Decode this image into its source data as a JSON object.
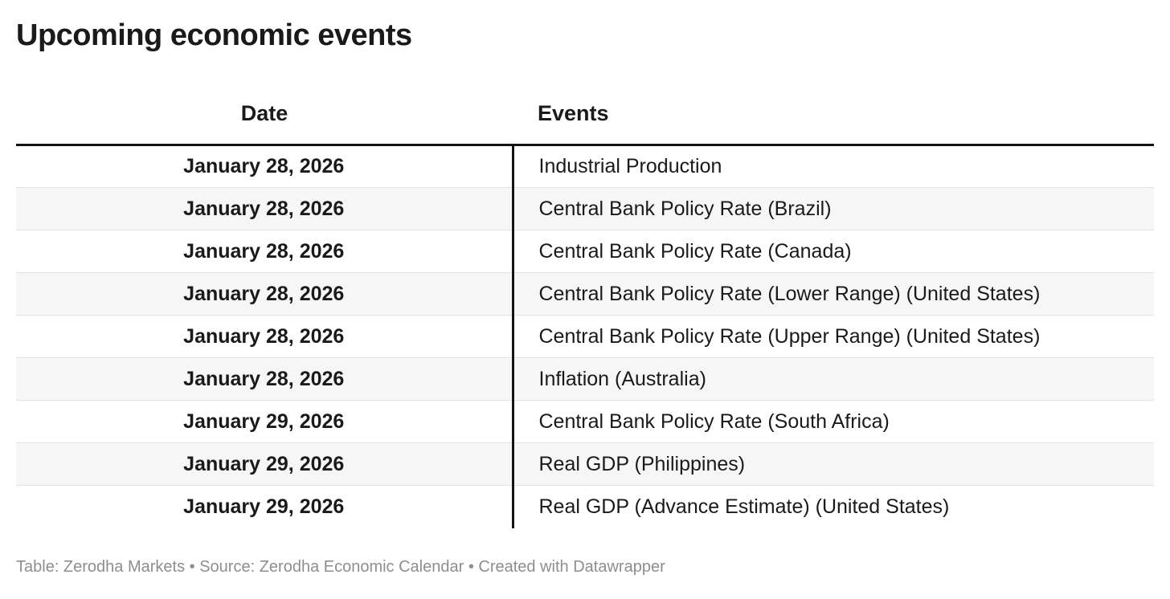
{
  "title": "Upcoming economic events",
  "chart_data": {
    "type": "table",
    "title": "Upcoming economic events",
    "columns": [
      "Date",
      "Events"
    ],
    "rows": [
      {
        "date": "January 28, 2026",
        "event": "Industrial Production"
      },
      {
        "date": "January 28, 2026",
        "event": "Central Bank Policy Rate (Brazil)"
      },
      {
        "date": "January 28, 2026",
        "event": "Central Bank Policy Rate (Canada)"
      },
      {
        "date": "January 28, 2026",
        "event": "Central Bank Policy Rate (Lower Range) (United States)"
      },
      {
        "date": "January 28, 2026",
        "event": "Central Bank Policy Rate (Upper Range) (United States)"
      },
      {
        "date": "January 28, 2026",
        "event": "Inflation (Australia)"
      },
      {
        "date": "January 29, 2026",
        "event": "Central Bank Policy Rate (South Africa)"
      },
      {
        "date": "January 29, 2026",
        "event": "Real GDP (Philippines)"
      },
      {
        "date": "January 29, 2026",
        "event": "Real GDP (Advance Estimate) (United States)"
      }
    ],
    "layout_hints": {
      "date_column_align": "center",
      "events_column_align": "left",
      "zebra_striping": true,
      "header_rule": true,
      "column_divider": true
    }
  },
  "footer": {
    "text": "Table: Zerodha Markets • Source: Zerodha Economic Calendar • Created with Datawrapper"
  },
  "colors": {
    "text": "#1a1a1a",
    "header_rule": "#141414",
    "column_divider": "#141414",
    "row_alt_background": "#f6f6f6",
    "row_separator": "#e3e3e3",
    "footer_text": "#8e8e8e"
  }
}
